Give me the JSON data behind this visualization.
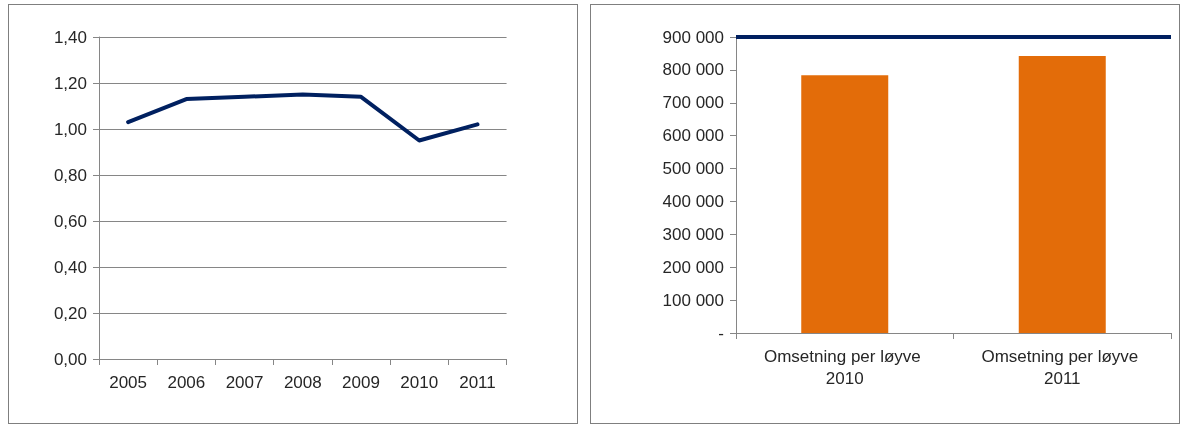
{
  "chart_data": [
    {
      "type": "line",
      "categories": [
        "2005",
        "2006",
        "2007",
        "2008",
        "2009",
        "2010",
        "2011"
      ],
      "series": [
        {
          "color": "#002060",
          "values": [
            1.03,
            1.13,
            1.14,
            1.15,
            1.14,
            0.95,
            1.02
          ]
        }
      ],
      "ylim": [
        0,
        1.4
      ],
      "yticks": [
        {
          "value": 0,
          "label": "0,00"
        },
        {
          "value": 0.2,
          "label": "0,20"
        },
        {
          "value": 0.4,
          "label": "0,40"
        },
        {
          "value": 0.6,
          "label": "0,60"
        },
        {
          "value": 0.8,
          "label": "0,80"
        },
        {
          "value": 1,
          "label": "1,00"
        },
        {
          "value": 1.2,
          "label": "1,20"
        },
        {
          "value": 1.4,
          "label": "1,40"
        }
      ],
      "grid": "y",
      "marker": "none",
      "line_style": "solid"
    },
    {
      "type": "bar",
      "categories": [
        "Omsetning per løyve 2010",
        "Omsetning per løyve 2011"
      ],
      "series": [
        {
          "color": "#e36c09",
          "values": [
            784000,
            842000
          ]
        }
      ],
      "ylim": [
        0,
        900000
      ],
      "yticks": [
        {
          "value": 0,
          "label": "-"
        },
        {
          "value": 100000,
          "label": "100 000"
        },
        {
          "value": 200000,
          "label": "200 000"
        },
        {
          "value": 300000,
          "label": "300 000"
        },
        {
          "value": 400000,
          "label": "400 000"
        },
        {
          "value": 500000,
          "label": "500 000"
        },
        {
          "value": 600000,
          "label": "600 000"
        },
        {
          "value": 700000,
          "label": "700 000"
        },
        {
          "value": 800000,
          "label": "800 000"
        },
        {
          "value": 900000,
          "label": "900 000"
        }
      ],
      "grid": false,
      "ref_lines": [
        {
          "axis": "y",
          "value": 900000,
          "label": null,
          "color": "#002060"
        }
      ]
    }
  ]
}
